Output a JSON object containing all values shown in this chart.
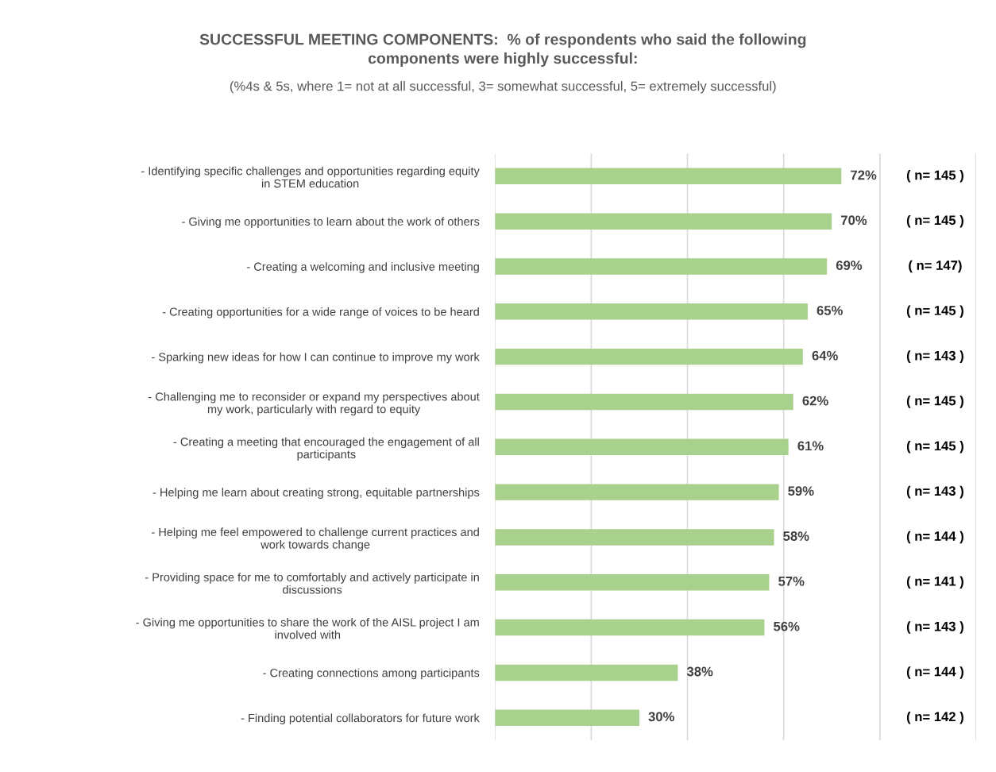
{
  "chart_data": {
    "type": "bar",
    "orientation": "horizontal",
    "title": "SUCCESSFUL MEETING COMPONENTS:  % of respondents who said the following\ncomponents were highly successful:",
    "subtitle": "(%4s & 5s, where 1= not at all successful, 3= somewhat successful, 5= extremely successful)",
    "categories": [
      "- Identifying specific challenges and opportunities regarding equity\nin STEM education",
      "- Giving me opportunities to learn about the work of others",
      "- Creating a welcoming and inclusive meeting",
      "- Creating opportunities for a wide range of voices to be heard",
      "- Sparking new ideas for how I can continue to improve my work",
      "- Challenging me to reconsider or expand my perspectives about\nmy work, particularly with regard to equity",
      "- Creating a meeting that encouraged the engagement of all\nparticipants",
      "- Helping me learn about creating strong, equitable partnerships",
      "- Helping me feel empowered to challenge current practices and\nwork towards change",
      "- Providing space for me to comfortably and actively participate in\ndiscussions",
      "- Giving me opportunities to share the work of the AISL project I am\ninvolved with",
      "- Creating connections among participants",
      "- Finding potential collaborators for future work"
    ],
    "values": [
      72,
      70,
      69,
      65,
      64,
      62,
      61,
      59,
      58,
      57,
      56,
      38,
      30
    ],
    "value_labels": [
      "72%",
      "70%",
      "69%",
      "65%",
      "64%",
      "62%",
      "61%",
      "59%",
      "58%",
      "57%",
      "56%",
      "38%",
      "30%"
    ],
    "color": "#a9d18e",
    "xlim": [
      0,
      100
    ],
    "xticks": [
      {
        "value": 0,
        "label": null
      },
      {
        "value": 20,
        "label": null
      },
      {
        "value": 40,
        "label": null
      },
      {
        "value": 60,
        "label": null
      },
      {
        "value": 80,
        "label": null
      },
      {
        "value": 100,
        "label": null
      }
    ],
    "tick_labels": "y",
    "grid": "x",
    "annotations": [
      "( n= 145 )",
      "( n= 145 )",
      "( n= 147)",
      "( n= 145 )",
      "( n= 143 )",
      "( n= 145 )",
      "( n= 145 )",
      "( n= 143 )",
      "( n= 144 )",
      "( n= 141 )",
      "( n= 143 )",
      "( n= 144 )",
      "( n= 142 )"
    ]
  }
}
